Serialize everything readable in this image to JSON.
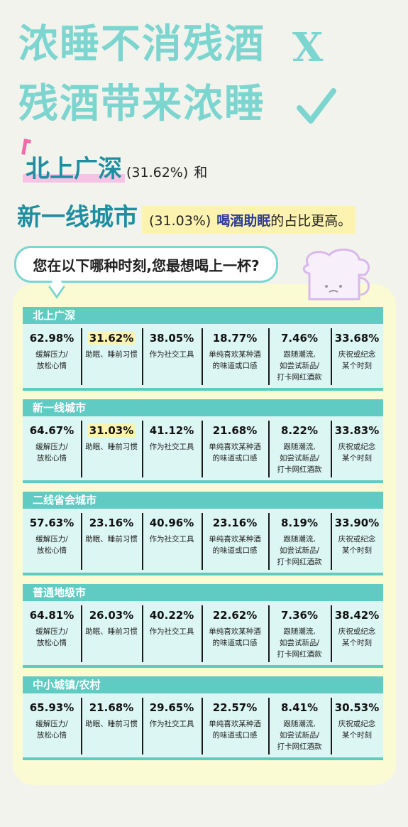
{
  "headline": {
    "line1": "浓睡不消残酒",
    "line1_mark": "X",
    "line2": "残酒带来浓睡"
  },
  "subtitle": {
    "city1": "北上广深",
    "pct1": "(31.62%)",
    "conj": "和",
    "city2": "新一线城市",
    "pct2": "(31.03%)",
    "highlight": "喝酒助眠",
    "tail": "的占比更高。"
  },
  "question": "您在以下哪种时刻,您最想喝上一杯?",
  "colors": {
    "teal": "#5fcbc3",
    "headline": "#7dd5cf",
    "pink": "#f26aa7",
    "yellow": "#fdf3b0",
    "cell_bg": "#dcf7f3"
  },
  "panels": [
    {
      "name": "北上广深",
      "cells": [
        {
          "value": "62.98%",
          "label": "缓解压力/\n放松心情"
        },
        {
          "value": "31.62%",
          "label": "助眠、睡前习惯",
          "highlight": true
        },
        {
          "value": "38.05%",
          "label": "作为社交工具"
        },
        {
          "value": "18.77%",
          "label": "单纯喜欢某种酒\n的味道或口感"
        },
        {
          "value": "7.46%",
          "label": "跟随潮流,\n如尝试新品/\n打卡网红酒款"
        },
        {
          "value": "33.68%",
          "label": "庆祝或纪念\n某个时刻"
        }
      ]
    },
    {
      "name": "新一线城市",
      "cells": [
        {
          "value": "64.67%",
          "label": "缓解压力/\n放松心情"
        },
        {
          "value": "31.03%",
          "label": "助眠、睡前习惯",
          "highlight": true
        },
        {
          "value": "41.12%",
          "label": "作为社交工具"
        },
        {
          "value": "21.68%",
          "label": "单纯喜欢某种酒\n的味道或口感"
        },
        {
          "value": "8.22%",
          "label": "跟随潮流,\n如尝试新品/\n打卡网红酒款"
        },
        {
          "value": "33.83%",
          "label": "庆祝或纪念\n某个时刻"
        }
      ]
    },
    {
      "name": "二线省会城市",
      "cells": [
        {
          "value": "57.63%",
          "label": "缓解压力/\n放松心情"
        },
        {
          "value": "23.16%",
          "label": "助眠、睡前习惯"
        },
        {
          "value": "40.96%",
          "label": "作为社交工具"
        },
        {
          "value": "23.16%",
          "label": "单纯喜欢某种酒\n的味道或口感"
        },
        {
          "value": "8.19%",
          "label": "跟随潮流,\n如尝试新品/\n打卡网红酒款"
        },
        {
          "value": "33.90%",
          "label": "庆祝或纪念\n某个时刻"
        }
      ]
    },
    {
      "name": "普通地级市",
      "cells": [
        {
          "value": "64.81%",
          "label": "缓解压力/\n放松心情"
        },
        {
          "value": "26.03%",
          "label": "助眠、睡前习惯"
        },
        {
          "value": "40.22%",
          "label": "作为社交工具"
        },
        {
          "value": "22.62%",
          "label": "单纯喜欢某种酒\n的味道或口感"
        },
        {
          "value": "7.36%",
          "label": "跟随潮流,\n如尝试新品/\n打卡网红酒款"
        },
        {
          "value": "38.42%",
          "label": "庆祝或纪念\n某个时刻"
        }
      ]
    },
    {
      "name": "中小城镇/农村",
      "cells": [
        {
          "value": "65.93%",
          "label": "缓解压力/\n放松心情"
        },
        {
          "value": "21.68%",
          "label": "助眠、睡前习惯"
        },
        {
          "value": "29.65%",
          "label": "作为社交工具"
        },
        {
          "value": "22.57%",
          "label": "单纯喜欢某种酒\n的味道或口感"
        },
        {
          "value": "8.41%",
          "label": "跟随潮流,\n如尝试新品/\n打卡网红酒款"
        },
        {
          "value": "30.53%",
          "label": "庆祝或纪念\n某个时刻"
        }
      ]
    }
  ]
}
